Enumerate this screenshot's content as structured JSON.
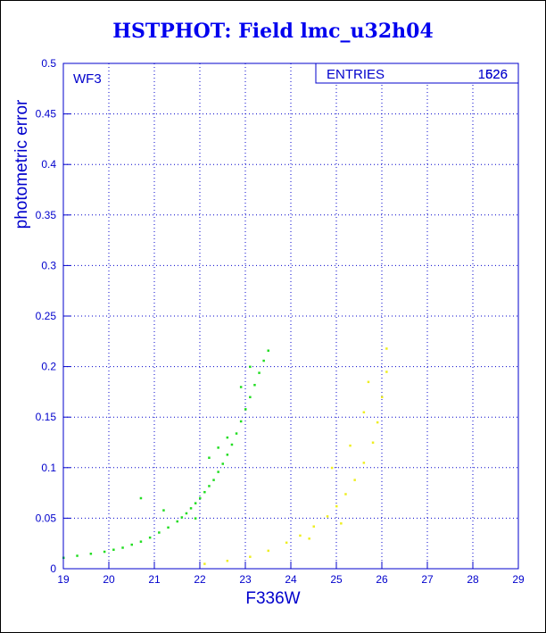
{
  "title": "HSTPHOT: Field lmc_u32h04",
  "colors": {
    "axis": "#0000cc",
    "grid": "#0000cc",
    "green": "#22dd22",
    "yellow": "#eeee22"
  },
  "chart_data": {
    "type": "scatter",
    "title": "HSTPHOT: Field lmc_u32h04",
    "xlabel": "F336W",
    "ylabel": "photometric error",
    "xlim": [
      19,
      29
    ],
    "ylim": [
      0,
      0.5
    ],
    "grid": true,
    "xticks": [
      "19",
      "20",
      "21",
      "22",
      "23",
      "24",
      "25",
      "26",
      "27",
      "28",
      "29"
    ],
    "yticks": [
      "0",
      "0.05",
      "0.1",
      "0.15",
      "0.2",
      "0.25",
      "0.3",
      "0.35",
      "0.4",
      "0.45",
      "0.5"
    ],
    "panel_label": "WF3",
    "stats_box": {
      "label": "ENTRIES",
      "values": [
        "1626",
        "526"
      ]
    },
    "series": [
      {
        "color": "#22dd22",
        "points": [
          [
            19.0,
            0.011
          ],
          [
            19.3,
            0.013
          ],
          [
            19.6,
            0.015
          ],
          [
            19.9,
            0.017
          ],
          [
            20.1,
            0.019
          ],
          [
            20.3,
            0.021
          ],
          [
            20.5,
            0.024
          ],
          [
            20.7,
            0.027
          ],
          [
            20.9,
            0.031
          ],
          [
            21.1,
            0.036
          ],
          [
            21.3,
            0.041
          ],
          [
            21.5,
            0.047
          ],
          [
            21.6,
            0.051
          ],
          [
            21.7,
            0.055
          ],
          [
            21.8,
            0.06
          ],
          [
            21.9,
            0.065
          ],
          [
            22.0,
            0.07
          ],
          [
            22.1,
            0.076
          ],
          [
            22.2,
            0.082
          ],
          [
            22.3,
            0.088
          ],
          [
            22.4,
            0.096
          ],
          [
            22.5,
            0.104
          ],
          [
            22.6,
            0.113
          ],
          [
            22.7,
            0.123
          ],
          [
            22.8,
            0.134
          ],
          [
            22.9,
            0.146
          ],
          [
            23.0,
            0.158
          ],
          [
            23.1,
            0.17
          ],
          [
            23.2,
            0.182
          ],
          [
            23.3,
            0.194
          ],
          [
            23.4,
            0.206
          ],
          [
            23.5,
            0.216
          ],
          [
            22.4,
            0.12
          ],
          [
            22.6,
            0.13
          ],
          [
            22.9,
            0.18
          ],
          [
            23.1,
            0.2
          ],
          [
            21.9,
            0.05
          ],
          [
            22.2,
            0.11
          ],
          [
            20.7,
            0.07
          ],
          [
            21.2,
            0.058
          ]
        ]
      },
      {
        "color": "#eeee22",
        "points": [
          [
            22.1,
            0.005
          ],
          [
            22.6,
            0.008
          ],
          [
            23.1,
            0.012
          ],
          [
            23.5,
            0.018
          ],
          [
            23.9,
            0.026
          ],
          [
            24.2,
            0.033
          ],
          [
            24.5,
            0.042
          ],
          [
            24.8,
            0.052
          ],
          [
            25.0,
            0.062
          ],
          [
            25.2,
            0.074
          ],
          [
            25.4,
            0.088
          ],
          [
            25.6,
            0.105
          ],
          [
            25.8,
            0.125
          ],
          [
            25.9,
            0.145
          ],
          [
            26.0,
            0.17
          ],
          [
            26.1,
            0.195
          ],
          [
            26.1,
            0.218
          ],
          [
            25.3,
            0.122
          ],
          [
            25.6,
            0.155
          ],
          [
            24.9,
            0.1
          ],
          [
            25.7,
            0.185
          ],
          [
            24.4,
            0.03
          ],
          [
            25.1,
            0.045
          ]
        ]
      }
    ]
  }
}
